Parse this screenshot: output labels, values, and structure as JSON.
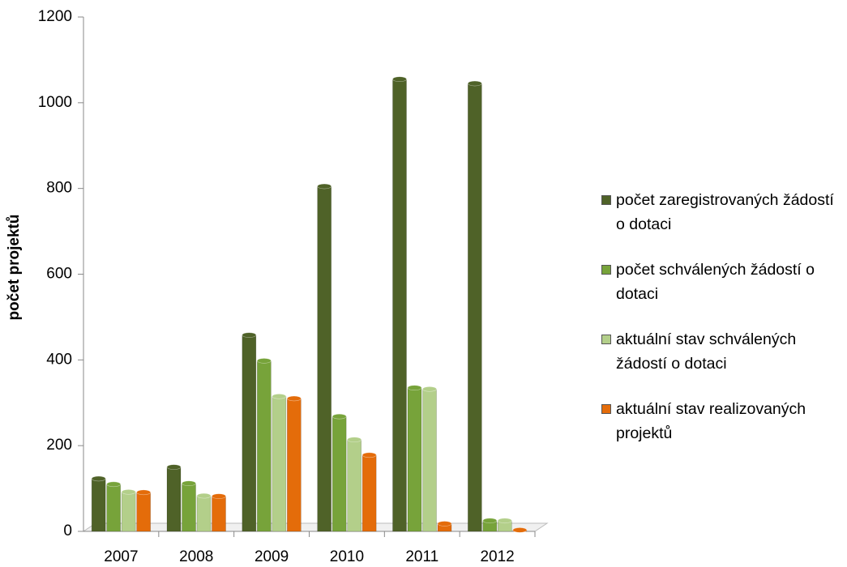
{
  "chart_data": {
    "type": "bar",
    "y_label": "počet projektů",
    "categories": [
      "2007",
      "2008",
      "2009",
      "2010",
      "2011",
      "2012"
    ],
    "series": [
      {
        "name": "počet zaregistrovaných žádostí o dotaci",
        "color": "#4f6228",
        "values": [
          123,
          150,
          458,
          805,
          1055,
          1045
        ]
      },
      {
        "name": "počet schválených žádostí o dotaci",
        "color": "#77a33a",
        "values": [
          110,
          112,
          398,
          268,
          335,
          25
        ]
      },
      {
        "name": "aktuální stav schválených žádostí o dotaci",
        "color": "#b3cf8a",
        "values": [
          92,
          83,
          315,
          214,
          332,
          25
        ]
      },
      {
        "name": "aktuální stav realizovaných projektů",
        "color": "#e46c0a",
        "values": [
          91,
          82,
          310,
          178,
          18,
          3
        ]
      }
    ],
    "ylim": [
      0,
      1200
    ],
    "yticks": [
      0,
      200,
      400,
      600,
      800,
      1000,
      1200
    ],
    "legend": "right"
  }
}
